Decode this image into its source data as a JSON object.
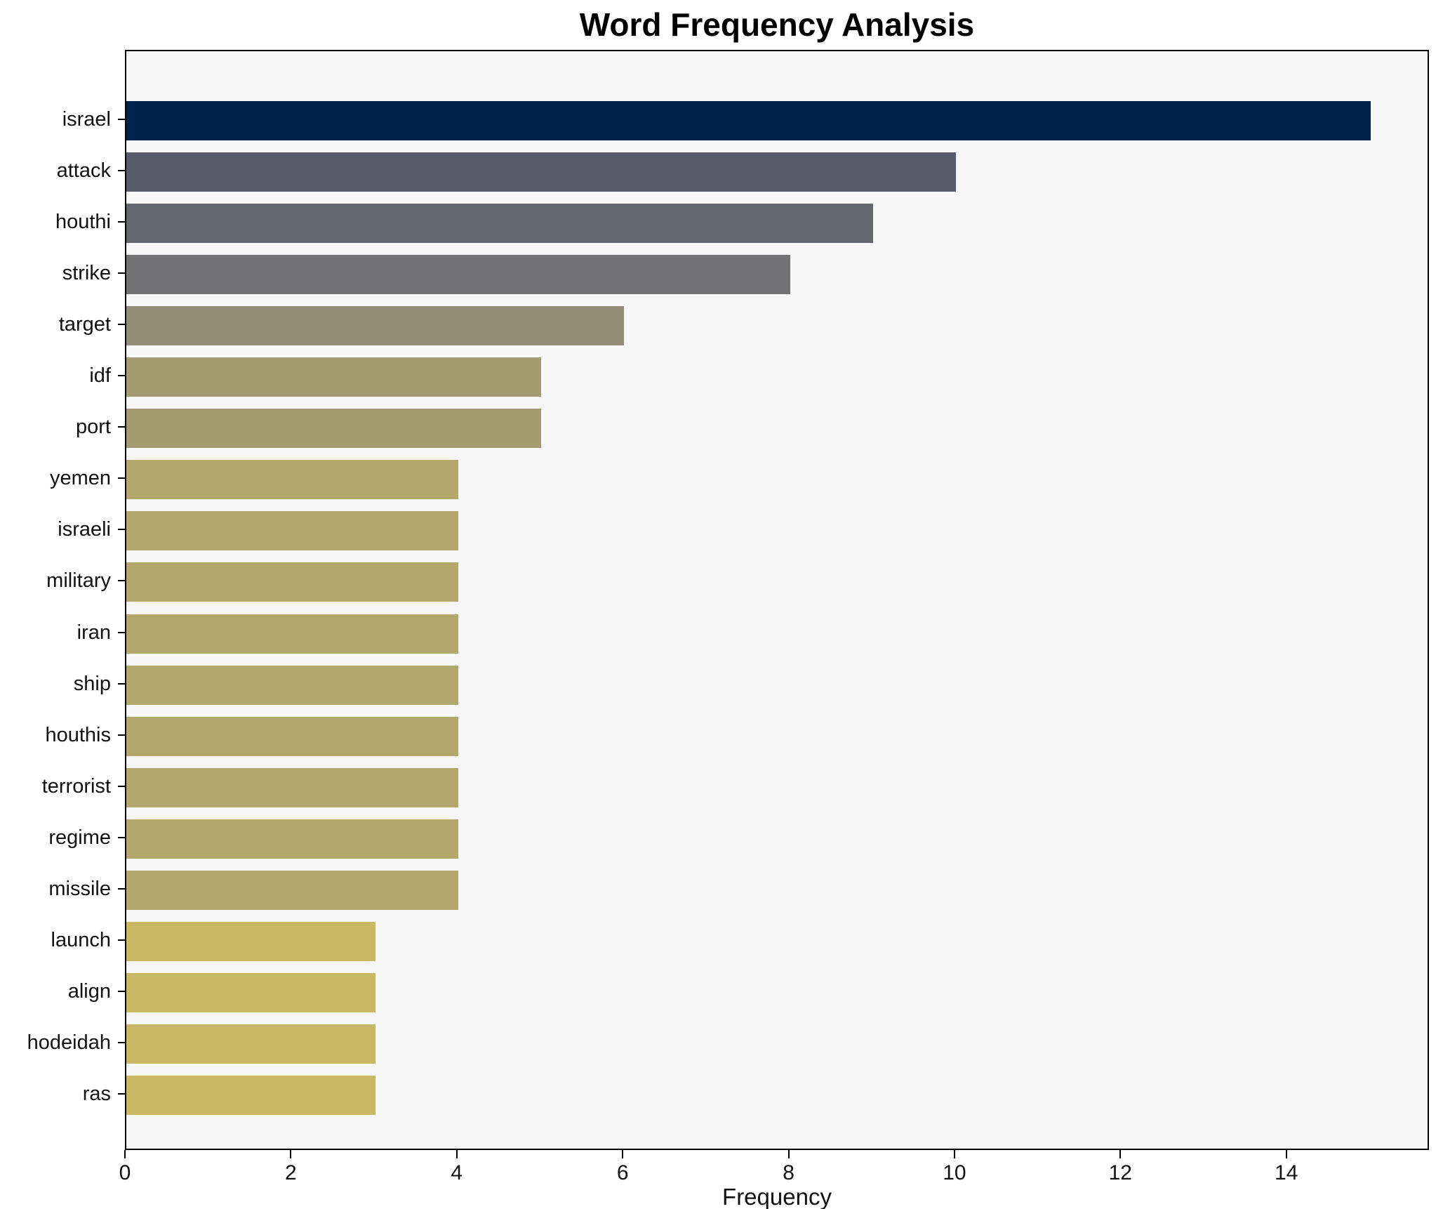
{
  "title": "Word Frequency Analysis",
  "chart_data": {
    "type": "bar",
    "orientation": "horizontal",
    "title": "Word Frequency Analysis",
    "xlabel": "Frequency",
    "ylabel": "",
    "categories": [
      "israel",
      "attack",
      "houthi",
      "strike",
      "target",
      "idf",
      "port",
      "yemen",
      "israeli",
      "military",
      "iran",
      "ship",
      "houthis",
      "terrorist",
      "regime",
      "missile",
      "launch",
      "align",
      "hodeidah",
      "ras"
    ],
    "values": [
      15,
      10,
      9,
      8,
      6,
      5,
      5,
      4,
      4,
      4,
      4,
      4,
      4,
      4,
      4,
      4,
      3,
      3,
      3,
      3
    ],
    "bar_colors": [
      "#00234e",
      "#575c6b",
      "#64676f",
      "#727275",
      "#928d77",
      "#a39c73",
      "#a39c73",
      "#b2a86c",
      "#b2a86c",
      "#b2a86c",
      "#b2a86c",
      "#b2a86c",
      "#b2a86c",
      "#b2a86c",
      "#b2a86c",
      "#b2a86c",
      "#c9b866",
      "#c9b866",
      "#c9b866",
      "#c9b866"
    ],
    "xticks": [
      0,
      2,
      4,
      6,
      8,
      10,
      12,
      14
    ],
    "xlim": [
      0,
      15.72
    ],
    "grid": false,
    "legend": null,
    "plot_background": "#f7f7f8",
    "figure_background": "#ffffff",
    "spine_color": "#000000"
  }
}
